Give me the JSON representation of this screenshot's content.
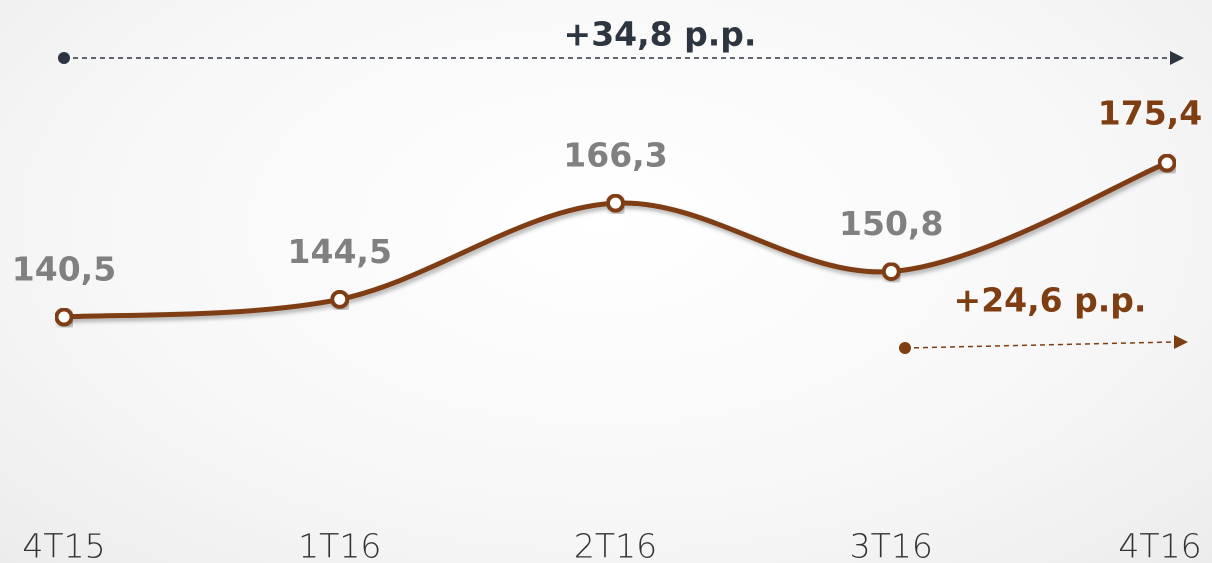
{
  "chart_data": {
    "type": "line",
    "categories": [
      "4T15",
      "1T16",
      "2T16",
      "3T16",
      "4T16"
    ],
    "series": [
      {
        "color": "#7f3d12",
        "values": [
          140.5,
          144.5,
          166.3,
          150.8,
          175.4
        ],
        "value_labels": [
          "140,5",
          "144,5",
          "166,3",
          "150,8",
          "175,4"
        ]
      }
    ],
    "annotations": [
      "+34,8 p.p.",
      "+24,6 p.p."
    ]
  }
}
